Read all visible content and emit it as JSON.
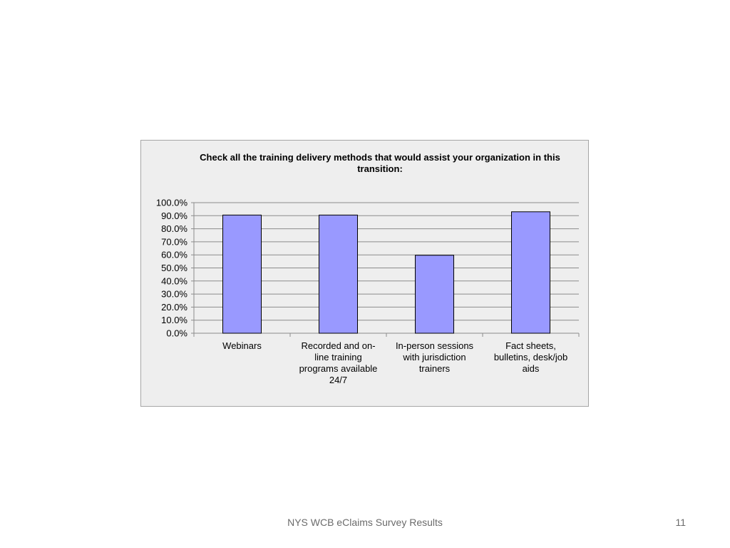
{
  "chart_data": {
    "type": "bar",
    "title": "Check all the training delivery methods that would assist your organization in this transition:",
    "categories": [
      "Webinars",
      "Recorded and on-line training programs available 24/7",
      "In-person sessions with jurisdiction trainers",
      "Fact sheets, bulletins, desk/job aids"
    ],
    "category_lines": [
      [
        "Webinars"
      ],
      [
        "Recorded and on-",
        "line training",
        "programs available",
        "24/7"
      ],
      [
        "In-person sessions",
        "with jurisdiction",
        "trainers"
      ],
      [
        "Fact sheets,",
        "bulletins, desk/job",
        "aids"
      ]
    ],
    "values": [
      90.5,
      90.5,
      59.7,
      93.0
    ],
    "ylim": [
      0,
      100
    ],
    "y_ticks": [
      "0.0%",
      "10.0%",
      "20.0%",
      "30.0%",
      "40.0%",
      "50.0%",
      "60.0%",
      "70.0%",
      "80.0%",
      "90.0%",
      "100.0%"
    ],
    "xlabel": "",
    "ylabel": "",
    "grid": true,
    "bar_color": "#9999ff",
    "bar_border_color": "#000000"
  },
  "footer": {
    "title": "NYS WCB eClaims Survey Results",
    "page_number": "11"
  }
}
